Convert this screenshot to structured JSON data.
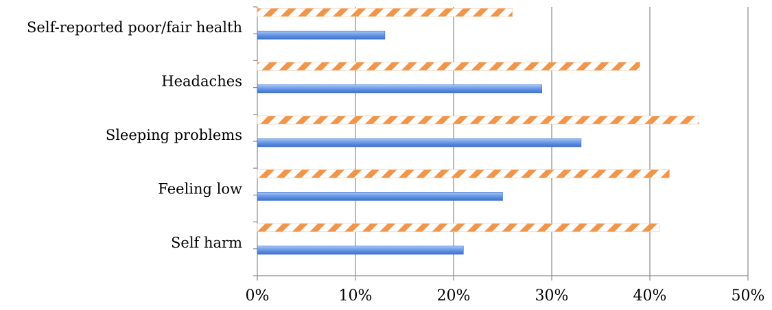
{
  "chart_data": {
    "type": "bar",
    "orientation": "horizontal",
    "categories": [
      "Self harm",
      "Feeling low",
      "Sleeping problems",
      "Headaches",
      "Self-reported poor/fair health"
    ],
    "series": [
      {
        "values": [
          21,
          25,
          33,
          29,
          13
        ],
        "color": "#5b8fe0",
        "pattern": "solid"
      },
      {
        "values": [
          41,
          42,
          45,
          39,
          26
        ],
        "color": "#f0954a",
        "pattern": "diagonal-stripes"
      }
    ],
    "x_ticks": [
      "0%",
      "10%",
      "20%",
      "30%",
      "40%",
      "50%"
    ],
    "xlim": [
      0,
      50
    ],
    "grid": "vertical",
    "legend": "none"
  }
}
